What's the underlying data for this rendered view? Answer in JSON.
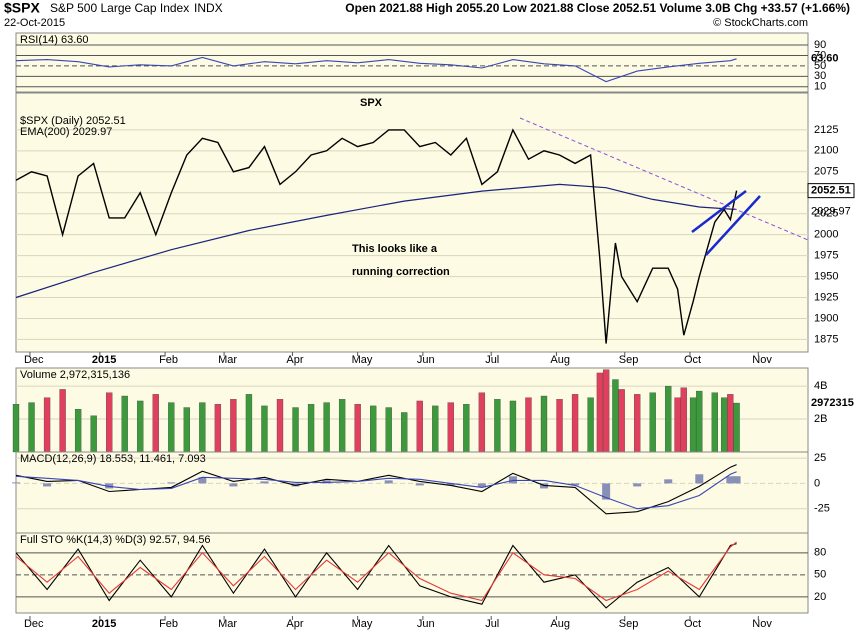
{
  "header": {
    "symbol": "$SPX",
    "name": "S&P 500 Large Cap Index",
    "exchange": "INDX",
    "date": "22-Oct-2015",
    "quote": "Open 2021.88  High 2055.20  Low 2021.88  Close 2052.51  Volume 3.0B  Chg +33.57 (+1.66%)",
    "credit": "© StockCharts.com"
  },
  "chart_data": [
    {
      "type": "line",
      "legend": "RSI(14) 63.60",
      "last_label": "63.60",
      "xlim": [
        0,
        255
      ],
      "ylim": [
        0,
        113
      ],
      "yticks": [
        90,
        70,
        50,
        30,
        10
      ],
      "x": [
        0,
        10,
        20,
        30,
        40,
        50,
        60,
        70,
        80,
        90,
        100,
        110,
        120,
        130,
        140,
        150,
        160,
        170,
        180,
        190,
        200,
        210,
        220,
        230,
        232
      ],
      "series": [
        {
          "name": "RSI(14)",
          "color": "#3b46b5",
          "values": [
            60,
            62,
            58,
            48,
            52,
            50,
            66,
            50,
            58,
            54,
            60,
            56,
            62,
            55,
            52,
            46,
            62,
            54,
            50,
            20,
            40,
            48,
            55,
            60,
            63.6
          ]
        }
      ]
    },
    {
      "type": "line",
      "title": "SPX",
      "legend": [
        "$SPX (Daily) 2052.51",
        "EMA(200) 2029.97"
      ],
      "annotation": [
        "This looks like a",
        "running correction"
      ],
      "xlim": [
        0,
        255
      ],
      "ylim": [
        1860,
        2169
      ],
      "yticks": [
        1875,
        1900,
        1925,
        1950,
        1975,
        2000,
        2025,
        2050,
        2075,
        2100,
        2125
      ],
      "xticks": [
        {
          "value": 4.5,
          "label": "Dec"
        },
        {
          "value": 27,
          "label": "2015"
        },
        {
          "value": 48,
          "label": "Feb"
        },
        {
          "value": 67,
          "label": "Mar"
        },
        {
          "value": 89,
          "label": "Apr"
        },
        {
          "value": 110,
          "label": "May"
        },
        {
          "value": 131,
          "label": "Jun"
        },
        {
          "value": 153,
          "label": "Jul"
        },
        {
          "value": 174,
          "label": "Aug"
        },
        {
          "value": 196,
          "label": "Sep"
        },
        {
          "value": 217,
          "label": "Oct"
        },
        {
          "value": 239,
          "label": "Nov"
        }
      ],
      "x": [
        0,
        5,
        10,
        15,
        20,
        25,
        30,
        35,
        40,
        45,
        50,
        55,
        60,
        65,
        70,
        75,
        80,
        85,
        90,
        95,
        100,
        105,
        110,
        115,
        120,
        125,
        130,
        135,
        140,
        145,
        150,
        155,
        160,
        165,
        170,
        175,
        180,
        185,
        188,
        190,
        193,
        195,
        200,
        205,
        210,
        213,
        215,
        218,
        220,
        225,
        228,
        230,
        232
      ],
      "series": [
        {
          "name": "$SPX",
          "color": "#000000",
          "values": [
            2065,
            2075,
            2070,
            2000,
            2070,
            2085,
            2020,
            2020,
            2050,
            2000,
            2050,
            2095,
            2115,
            2110,
            2075,
            2080,
            2105,
            2060,
            2075,
            2095,
            2100,
            2115,
            2105,
            2110,
            2125,
            2125,
            2105,
            2110,
            2095,
            2115,
            2060,
            2075,
            2125,
            2090,
            2100,
            2095,
            2085,
            2095,
            1970,
            1870,
            1990,
            1950,
            1920,
            1960,
            1960,
            1935,
            1880,
            1920,
            1950,
            2015,
            2030,
            2018,
            2052.51
          ]
        }
      ],
      "ema": {
        "name": "EMA(200)",
        "color": "#1a237e",
        "x": [
          0,
          25,
          50,
          75,
          100,
          125,
          150,
          175,
          190,
          205,
          220,
          232
        ],
        "values": [
          1925,
          1955,
          1982,
          2005,
          2023,
          2040,
          2052,
          2060,
          2056,
          2042,
          2033,
          2029.97
        ]
      }
    },
    {
      "type": "bar",
      "legend": "Volume 2,972,315,136",
      "last_label": "2972315",
      "xlim": [
        0,
        255
      ],
      "ylim": [
        0,
        5100000000
      ],
      "yticks": [
        {
          "value": 2000000000,
          "label": "2B"
        },
        {
          "value": 4000000000,
          "label": "4B"
        }
      ],
      "up_color": "#3c9a3c",
      "down_color": "#e0405e",
      "x": [
        0,
        5,
        10,
        15,
        20,
        25,
        30,
        35,
        40,
        45,
        50,
        55,
        60,
        65,
        70,
        75,
        80,
        85,
        90,
        95,
        100,
        105,
        110,
        115,
        120,
        125,
        130,
        135,
        140,
        145,
        150,
        155,
        160,
        165,
        170,
        175,
        180,
        185,
        188,
        190,
        193,
        195,
        200,
        205,
        210,
        213,
        215,
        218,
        220,
        225,
        228,
        230,
        232
      ],
      "values": [
        2900000000,
        3000000000,
        3300000000,
        3800000000,
        2600000000,
        2200000000,
        3600000000,
        3400000000,
        3100000000,
        3500000000,
        3000000000,
        2700000000,
        3000000000,
        2900000000,
        3200000000,
        3500000000,
        2800000000,
        3200000000,
        2700000000,
        2900000000,
        3000000000,
        3200000000,
        2900000000,
        2800000000,
        2700000000,
        2400000000,
        3100000000,
        2800000000,
        3000000000,
        2900000000,
        3600000000,
        3200000000,
        3100000000,
        3300000000,
        3400000000,
        3200000000,
        3500000000,
        3300000000,
        4800000000,
        5000000000,
        4400000000,
        3800000000,
        3500000000,
        3600000000,
        4000000000,
        3300000000,
        3900000000,
        3300000000,
        3700000000,
        3600000000,
        3300000000,
        3500000000,
        2972315136
      ]
    },
    {
      "type": "line",
      "legend": "MACD(12,26,9) 18.553, 11.461, 7.093",
      "xlim": [
        0,
        255
      ],
      "ylim": [
        -49,
        31
      ],
      "yticks": [
        25,
        0,
        -25
      ],
      "x": [
        0,
        10,
        20,
        30,
        40,
        50,
        60,
        70,
        80,
        90,
        100,
        110,
        120,
        130,
        140,
        150,
        160,
        170,
        180,
        190,
        200,
        210,
        220,
        230,
        232
      ],
      "series": [
        {
          "name": "MACD",
          "color": "#000000",
          "values": [
            8,
            2,
            3,
            -8,
            -6,
            -4,
            12,
            2,
            6,
            -2,
            4,
            2,
            8,
            2,
            -2,
            -8,
            10,
            -2,
            -4,
            -30,
            -28,
            -18,
            -3,
            16,
            18.553
          ]
        },
        {
          "name": "Signal",
          "color": "#3b46b5",
          "values": [
            7,
            5,
            3,
            -3,
            -6,
            -5,
            6,
            5,
            4,
            1,
            1,
            2,
            5,
            4,
            0,
            -4,
            3,
            3,
            -2,
            -14,
            -25,
            -22,
            -12,
            9,
            11.461
          ]
        }
      ],
      "histogram": {
        "color": "#8890b8",
        "values": [
          1,
          -3,
          0,
          -5,
          0,
          1,
          6,
          -3,
          2,
          -3,
          3,
          0,
          3,
          -2,
          -2,
          -4,
          7,
          -5,
          -2,
          -16,
          -3,
          4,
          9,
          7,
          7.093
        ]
      }
    },
    {
      "type": "line",
      "legend": "Full STO %K(14,3) %D(3) 92.57, 94.56",
      "xlim": [
        0,
        255
      ],
      "ylim": [
        -2,
        107
      ],
      "yticks": [
        80,
        50,
        20
      ],
      "x": [
        0,
        10,
        20,
        30,
        40,
        50,
        60,
        70,
        80,
        90,
        100,
        110,
        120,
        130,
        140,
        150,
        160,
        170,
        180,
        190,
        200,
        210,
        220,
        230,
        232
      ],
      "series": [
        {
          "name": "%K",
          "color": "#000000",
          "values": [
            80,
            30,
            85,
            15,
            70,
            20,
            90,
            25,
            85,
            20,
            80,
            30,
            90,
            35,
            20,
            10,
            90,
            40,
            50,
            5,
            40,
            60,
            20,
            90,
            92.57
          ]
        },
        {
          "name": "%D",
          "color": "#e53935",
          "values": [
            75,
            40,
            75,
            25,
            60,
            30,
            80,
            35,
            75,
            30,
            70,
            40,
            80,
            45,
            25,
            15,
            80,
            50,
            45,
            15,
            30,
            55,
            30,
            88,
            94.56
          ]
        }
      ]
    }
  ]
}
